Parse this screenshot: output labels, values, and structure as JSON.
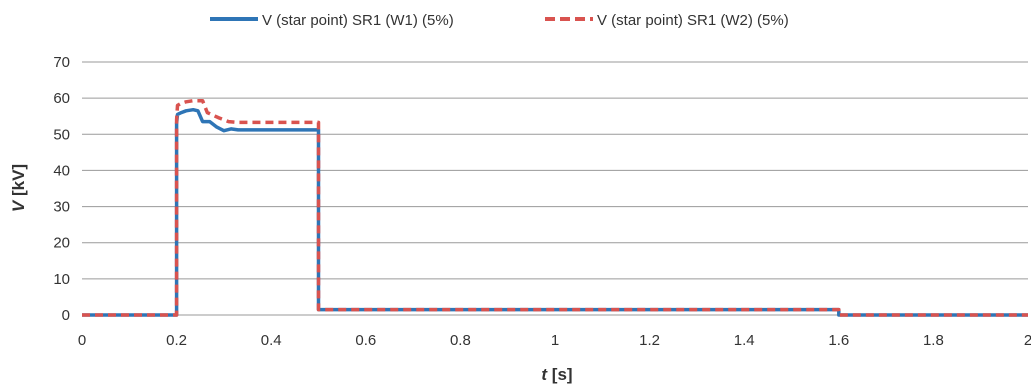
{
  "chart_data": {
    "type": "line",
    "title": "",
    "xlabel": {
      "var": "t",
      "unit": " [s]"
    },
    "ylabel": {
      "var": "V",
      "unit": " [kV]"
    },
    "xlim": [
      0,
      2
    ],
    "ylim": [
      0,
      70
    ],
    "xticks": [
      "0",
      "0.2",
      "0.4",
      "0.6",
      "0.8",
      "1",
      "1.2",
      "1.4",
      "1.6",
      "1.8",
      "2"
    ],
    "yticks": [
      "0",
      "10",
      "20",
      "30",
      "40",
      "50",
      "60",
      "70"
    ],
    "grid": "horizontal",
    "legend": "top-center",
    "series": [
      {
        "name": "V (star point) SR1 (W1) (5%)",
        "color": "#2e75b6",
        "style": "solid",
        "x": [
          0,
          0.2,
          0.2,
          0.202,
          0.21,
          0.22,
          0.235,
          0.245,
          0.255,
          0.27,
          0.285,
          0.3,
          0.315,
          0.33,
          0.4,
          0.5,
          0.5,
          0.6,
          1.0,
          1.5,
          1.6,
          1.6,
          2.0
        ],
        "y": [
          0,
          0,
          53,
          55.5,
          56,
          56.5,
          56.8,
          56.5,
          53.5,
          53.5,
          52,
          51,
          51.5,
          51.2,
          51.2,
          51.2,
          1.5,
          1.5,
          1.5,
          1.5,
          1.5,
          0,
          0
        ]
      },
      {
        "name": "V (star point) SR1 (W2) (5%)",
        "color": "#d9534f",
        "style": "dashed",
        "x": [
          0,
          0.2,
          0.2,
          0.202,
          0.21,
          0.22,
          0.235,
          0.255,
          0.265,
          0.29,
          0.31,
          0.33,
          0.4,
          0.5,
          0.5,
          0.6,
          1.0,
          1.5,
          1.6,
          1.6,
          2.0
        ],
        "y": [
          0,
          0,
          54,
          58,
          58.6,
          59,
          59.3,
          59.3,
          56,
          54.5,
          53.5,
          53.3,
          53.3,
          53.3,
          1.5,
          1.5,
          1.5,
          1.5,
          1.5,
          0,
          0
        ]
      }
    ]
  }
}
